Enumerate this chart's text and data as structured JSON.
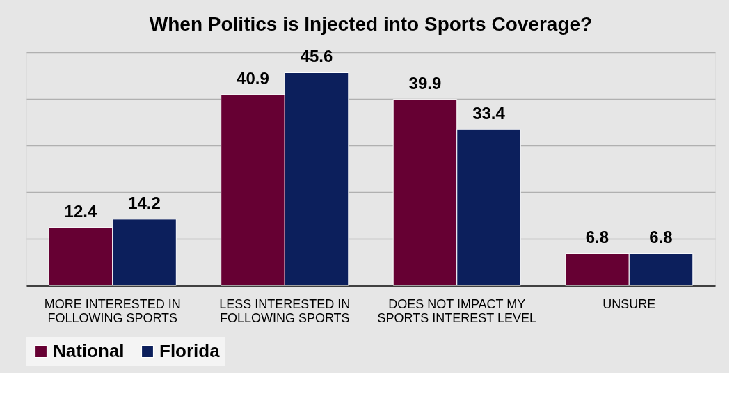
{
  "chart_data": {
    "type": "bar",
    "title": "When Politics is Injected into Sports Coverage?",
    "categories": [
      "MORE INTERESTED IN FOLLOWING SPORTS",
      "LESS INTERESTED IN FOLLOWING SPORTS",
      "DOES NOT IMPACT MY SPORTS INTEREST LEVEL",
      "UNSURE"
    ],
    "series": [
      {
        "name": "National",
        "color": "#660033",
        "values": [
          12.4,
          40.9,
          39.9,
          6.8
        ]
      },
      {
        "name": "Florida",
        "color": "#0c1f5c",
        "values": [
          14.2,
          45.6,
          33.4,
          6.8
        ]
      }
    ],
    "ylim": [
      0,
      50
    ],
    "yticks": [
      {
        "value": 0,
        "label": null
      },
      {
        "value": 10,
        "label": null
      },
      {
        "value": 20,
        "label": null
      },
      {
        "value": 30,
        "label": null
      },
      {
        "value": 40,
        "label": null
      },
      {
        "value": 50,
        "label": null
      }
    ],
    "grid": "y",
    "legend": "bottom",
    "data_labels": true,
    "tick_labels": "x"
  }
}
